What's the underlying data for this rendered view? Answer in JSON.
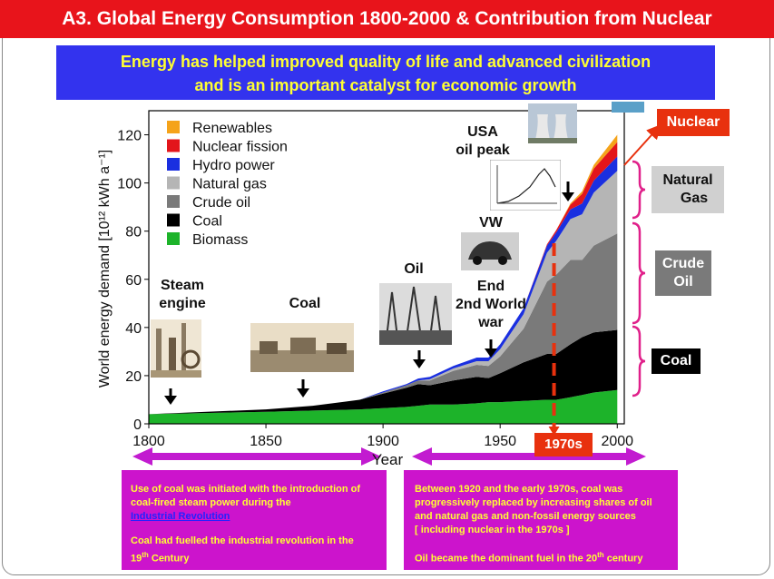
{
  "header": {
    "title": "A3. Global Energy Consumption 1800-2000 & Contribution from Nuclear",
    "subtitle_line1": "Energy has helped improved quality of life and advanced civilization",
    "subtitle_line2": "and is an important  catalyst for economic growth"
  },
  "chart_data": {
    "type": "area",
    "title": "",
    "xlabel": "Year",
    "ylabel": "World energy demand [10¹² kWh a⁻¹]",
    "xlim": [
      1800,
      2003
    ],
    "ylim": [
      0,
      130
    ],
    "x_ticks": [
      1800,
      1850,
      1900,
      1950,
      2000
    ],
    "y_ticks": [
      0,
      20,
      40,
      60,
      80,
      100,
      120
    ],
    "legend_placement": "top-left",
    "stacked": true,
    "x": [
      1800,
      1850,
      1870,
      1890,
      1900,
      1910,
      1915,
      1920,
      1930,
      1940,
      1945,
      1950,
      1960,
      1970,
      1974,
      1980,
      1985,
      1990,
      2000
    ],
    "series": [
      {
        "name": "Biomass",
        "color": "#1db32a",
        "values": [
          4,
          5,
          5.5,
          6,
          6.5,
          7,
          7.5,
          8,
          8,
          8.5,
          9,
          9,
          9.5,
          10,
          10,
          11,
          12,
          13,
          14
        ]
      },
      {
        "name": "Coal",
        "color": "#000000",
        "values": [
          0,
          1,
          2,
          4,
          6,
          8,
          9,
          8,
          10,
          11,
          10,
          12,
          16,
          19,
          19,
          22,
          24,
          25,
          25
        ]
      },
      {
        "name": "Crude oil",
        "color": "#7a7a7a",
        "values": [
          0,
          0,
          0,
          0,
          0.5,
          1,
          1.5,
          2,
          4,
          5,
          5,
          7,
          14,
          30,
          33,
          35,
          32,
          36,
          40
        ]
      },
      {
        "name": "Natural gas",
        "color": "#b5b5b5",
        "values": [
          0,
          0,
          0,
          0,
          0,
          0,
          0,
          0.5,
          1,
          1.5,
          2,
          3,
          6,
          12,
          14,
          17,
          19,
          22,
          26
        ]
      },
      {
        "name": "Hydro power",
        "color": "#1a2fe0",
        "values": [
          0,
          0,
          0,
          0,
          0.5,
          0.5,
          0.8,
          1,
          1,
          1.5,
          1.5,
          2,
          2.5,
          3,
          3.5,
          4,
          4.5,
          5,
          6
        ]
      },
      {
        "name": "Nuclear fission",
        "color": "#e3151b",
        "values": [
          0,
          0,
          0,
          0,
          0,
          0,
          0,
          0,
          0,
          0,
          0,
          0,
          0,
          0.5,
          1,
          2,
          4,
          5,
          6
        ]
      },
      {
        "name": "Renewables",
        "color": "#f5a31a",
        "values": [
          0,
          0,
          0,
          0,
          0,
          0,
          0,
          0,
          0,
          0,
          0,
          0,
          0,
          0,
          0,
          0.5,
          1,
          1.5,
          3
        ]
      }
    ],
    "annotations": [
      {
        "text_lines": [
          "Steam",
          "engine"
        ],
        "year": 1810
      },
      {
        "text_lines": [
          "Coal"
        ],
        "year": 1865
      },
      {
        "text_lines": [
          "Oil"
        ],
        "year": 1915
      },
      {
        "text_lines": [
          "VW"
        ],
        "year": 1944
      },
      {
        "text_lines": [
          "End",
          "2nd World",
          "war"
        ],
        "year": 1945
      },
      {
        "text_lines": [
          "USA",
          "oil peak"
        ],
        "year": 1970
      }
    ],
    "marker_1970s": {
      "label": "1970s",
      "year": 1973
    }
  },
  "side_labels": {
    "nuclear": "Nuclear",
    "natural_gas_line1": "Natural",
    "natural_gas_line2": "Gas",
    "crude_oil_line1": "Crude",
    "crude_oil_line2": "Oil",
    "coal": "Coal"
  },
  "notes": {
    "left_line1": "Use of coal was initiated with the introduction of coal-fired steam power during the",
    "left_link": "Industrial Revolution",
    "left_line2": "Coal had fuelled the industrial revolution in the",
    "left_line2_century": "19",
    "left_line2_sup": "th",
    "left_line2_end": " Century",
    "right_line1": "Between 1920 and the early 1970s, coal was progressively replaced by increasing shares of oil and natural gas and non-fossil energy sources",
    "right_line2": "[ including nuclear in the 1970s ]",
    "right_line3": "Oil became the dominant fuel in  the  20",
    "right_line3_sup": "th",
    "right_line3_end": " century"
  },
  "colors": {
    "title_bg": "#e8141b",
    "subtitle_bg": "#3333ee",
    "subtitle_text": "#ffff33",
    "note_bg": "#cc14cc",
    "arrow_magenta": "#c21bd0",
    "bracket": "#e0208a"
  }
}
